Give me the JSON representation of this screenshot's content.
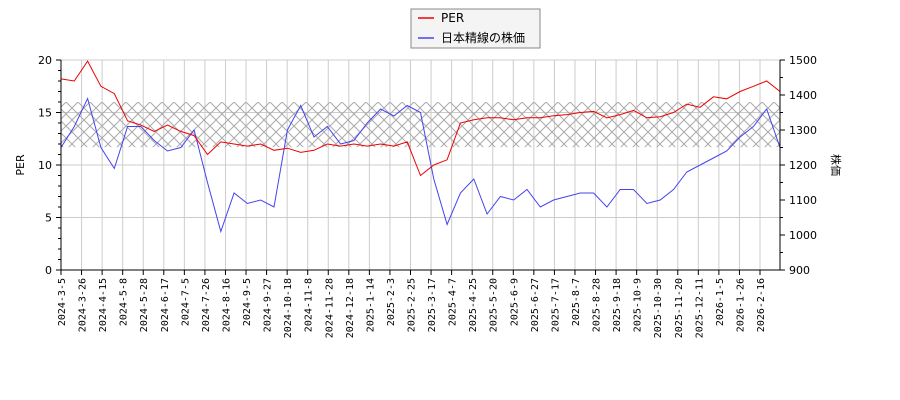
{
  "legend": {
    "items": [
      {
        "label": "PER",
        "color": "#ee0000"
      },
      {
        "label": "日本精線の株価",
        "color": "#4444ee"
      }
    ]
  },
  "axes": {
    "left_title": "PER",
    "right_title": "株価",
    "left_ticks": [
      "0",
      "5",
      "10",
      "15",
      "20"
    ],
    "right_ticks": [
      "900",
      "1000",
      "1100",
      "1200",
      "1300",
      "1400",
      "1500"
    ]
  },
  "chart_data": {
    "type": "line",
    "title": "",
    "xlabel": "",
    "ylabel": "PER",
    "ylabel_right": "株価",
    "ylim": [
      0,
      20
    ],
    "ylim_right": [
      900,
      1500
    ],
    "grid": true,
    "legend_position": "top-center",
    "shaded_band": {
      "axis": "left",
      "from": 11.7,
      "to": 16.0,
      "style": "crosshatch"
    },
    "x_tick_labels": [
      "2024-3-5",
      "2024-3-26",
      "2024-4-15",
      "2024-5-8",
      "2024-5-28",
      "2024-6-17",
      "2024-7-5",
      "2024-7-26",
      "2024-8-16",
      "2024-9-5",
      "2024-9-27",
      "2024-10-18",
      "2024-11-8",
      "2024-11-28",
      "2024-12-18",
      "2025-1-14",
      "2025-2-3",
      "2025-2-25",
      "2025-3-17",
      "2025-4-7",
      "2025-4-25",
      "2025-5-20",
      "2025-6-9",
      "2025-6-27",
      "2025-7-17",
      "2025-8-7",
      "2025-8-28",
      "2025-9-18",
      "2025-10-9",
      "2025-10-30",
      "2025-11-20",
      "2025-12-11",
      "2026-1-5",
      "2026-1-26",
      "2026-2-16"
    ],
    "series": [
      {
        "name": "PER",
        "axis": "left",
        "color": "#ee0000",
        "values": [
          18.2,
          18.0,
          19.9,
          17.5,
          16.8,
          14.2,
          13.8,
          13.2,
          13.8,
          13.2,
          12.8,
          11.0,
          12.2,
          12.0,
          11.8,
          12.0,
          11.4,
          11.6,
          11.2,
          11.4,
          12.0,
          11.8,
          12.0,
          11.8,
          12.0,
          11.8,
          12.2,
          9.0,
          10.0,
          10.5,
          14.0,
          14.3,
          14.5,
          14.5,
          14.3,
          14.5,
          14.5,
          14.7,
          14.8,
          15.0,
          15.1,
          14.5,
          14.8,
          15.2,
          14.5,
          14.6,
          15.0,
          15.8,
          15.5,
          16.5,
          16.3,
          17.0,
          17.5,
          18.0,
          17.0
        ]
      },
      {
        "name": "日本精線の株価",
        "axis": "right",
        "color": "#4444ee",
        "values": [
          1250,
          1310,
          1390,
          1250,
          1190,
          1310,
          1310,
          1270,
          1240,
          1250,
          1300,
          1150,
          1010,
          1120,
          1090,
          1100,
          1080,
          1300,
          1370,
          1280,
          1310,
          1260,
          1270,
          1320,
          1360,
          1340,
          1370,
          1350,
          1160,
          1030,
          1120,
          1160,
          1060,
          1110,
          1100,
          1130,
          1080,
          1100,
          1110,
          1120,
          1120,
          1080,
          1130,
          1130,
          1090,
          1100,
          1130,
          1180,
          1200,
          1220,
          1240,
          1280,
          1310,
          1360,
          1250
        ]
      }
    ]
  }
}
